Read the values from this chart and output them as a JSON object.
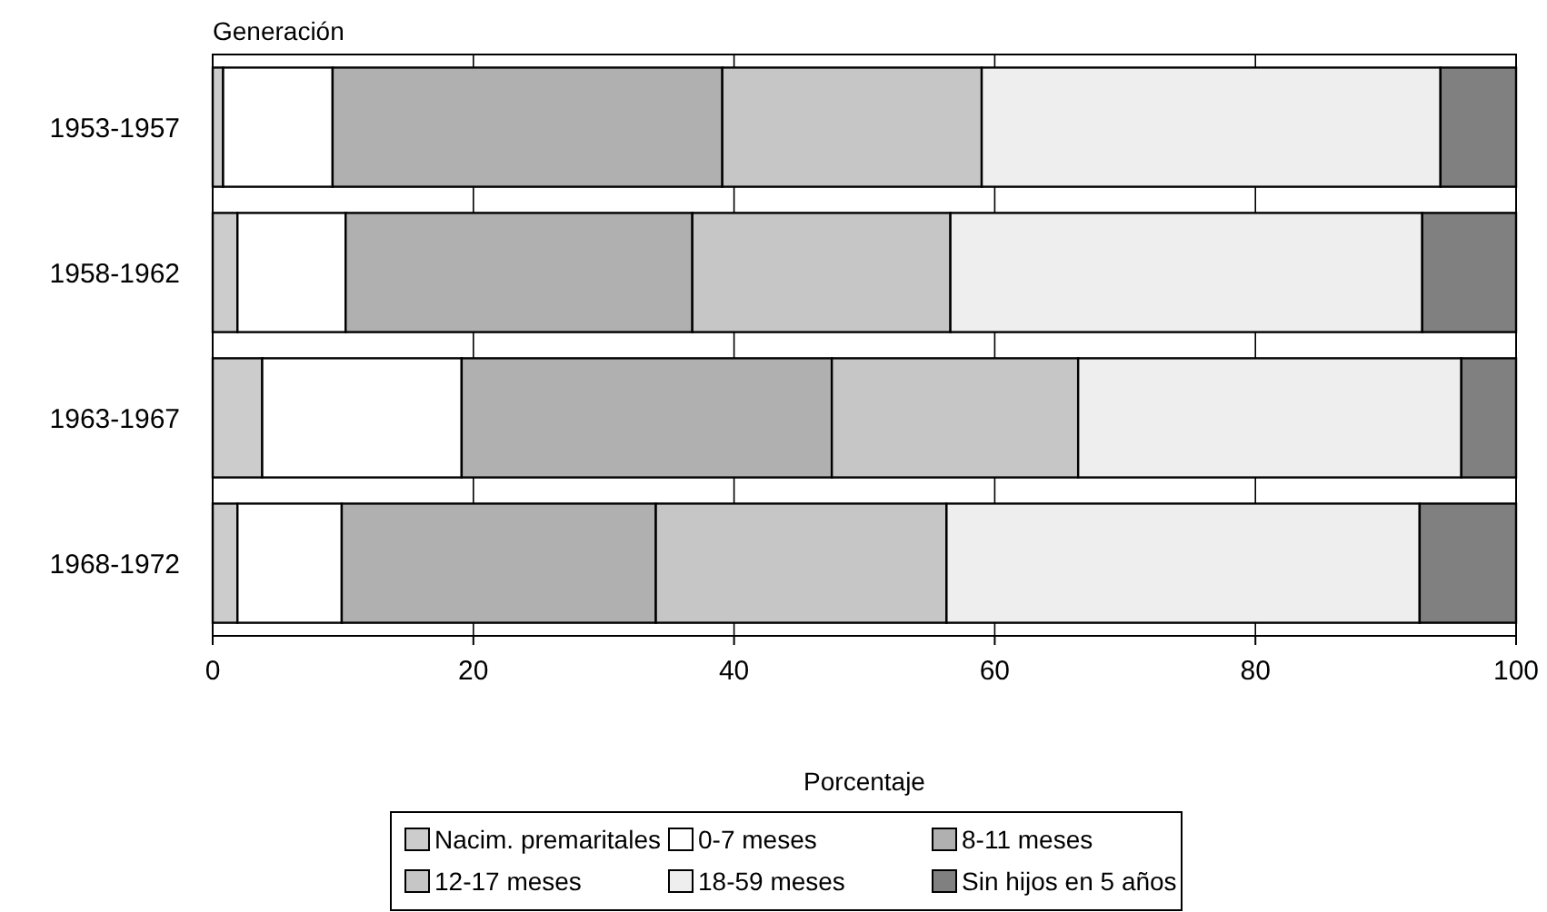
{
  "chart_data": {
    "type": "bar",
    "orientation": "horizontal",
    "stacked": true,
    "ylabel": "Generación",
    "xlabel": "Porcentaje",
    "categories": [
      "1953-1957",
      "1958-1962",
      "1963-1967",
      "1968-1972"
    ],
    "series": [
      {
        "name": "Nacim. premaritales",
        "color": "#cccccc",
        "values": [
          0.8,
          1.9,
          3.8,
          1.9
        ]
      },
      {
        "name": "0-7 meses",
        "color": "#ffffff",
        "values": [
          8.4,
          8.3,
          15.3,
          8.0
        ]
      },
      {
        "name": "8-11 meses",
        "color": "#b0b0b0",
        "values": [
          29.9,
          26.6,
          28.4,
          24.1
        ]
      },
      {
        "name": "12-17 meses",
        "color": "#c6c6c6",
        "values": [
          19.9,
          19.8,
          18.9,
          22.3
        ]
      },
      {
        "name": "18-59 meses",
        "color": "#eeeeee",
        "values": [
          35.2,
          36.2,
          29.4,
          36.3
        ]
      },
      {
        "name": "Sin hijos en 5 años",
        "color": "#808080",
        "values": [
          5.8,
          7.2,
          4.2,
          7.4
        ]
      }
    ],
    "xlim": [
      0,
      100
    ],
    "xticks": [
      0,
      20,
      40,
      60,
      80,
      100
    ],
    "grid": "x",
    "legend": "bottom"
  }
}
